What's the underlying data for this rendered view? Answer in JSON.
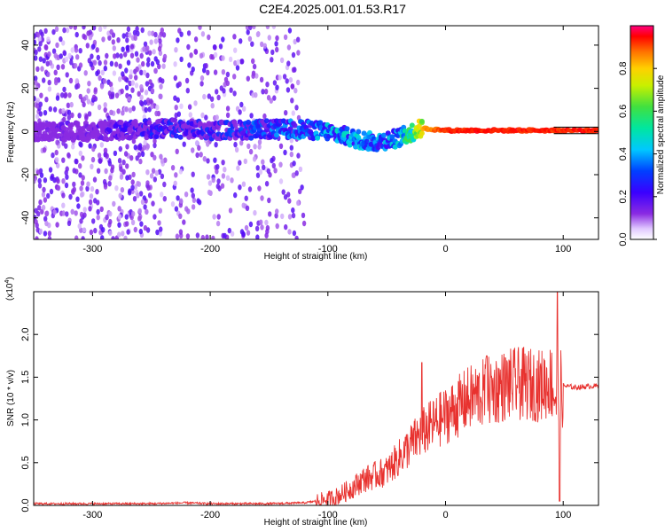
{
  "title": "C2E4.2025.001.01.53.R17",
  "colors": {
    "snr_line": "#e8322f",
    "point_primary": "#5a00e6",
    "point_faint": "#b8a0f0",
    "ridge_core": "#1adfb0",
    "frame": "#000000"
  },
  "chart_data": [
    {
      "type": "heatmap",
      "title": "C2E4.2025.001.01.53.R17",
      "xlabel": "Height of straight line (km)",
      "ylabel": "Frequency (Hz)",
      "xlim": [
        -350,
        130
      ],
      "ylim": [
        -50,
        49
      ],
      "x_ticks": [
        -300,
        -200,
        -100,
        0,
        100
      ],
      "y_ticks": [
        -40,
        -20,
        0,
        20,
        40
      ],
      "x_tick_labels": [
        "-300",
        "-200",
        "-100",
        "0",
        "100"
      ],
      "y_tick_labels": [
        "-40",
        "-20",
        "0",
        "20",
        "40"
      ],
      "grid": false,
      "colorbar": {
        "label": "Normalized spectral amplitude",
        "range": [
          0.0,
          1.0
        ],
        "ticks": [
          0.0,
          0.2,
          0.4,
          0.6,
          0.8
        ],
        "tick_labels": [
          "0.0",
          "0.2",
          "0.4",
          "0.6",
          "0.8"
        ],
        "colormap": "rainbow (white to purple to blue to cyan to green to yellow to red)"
      },
      "noise_region": {
        "x_range": [
          -350,
          -120
        ],
        "gap_x_range": [
          -238,
          -232
        ],
        "freq_range": [
          -50,
          49
        ],
        "amplitude": [
          0.05,
          0.2
        ]
      },
      "ridge": {
        "description": "signal band near 0 Hz; dense and noisy below about -30 km, narrow and stable above",
        "points": [
          {
            "x": -340,
            "f": 0.0,
            "amp": 0.15
          },
          {
            "x": -320,
            "f": 0.0,
            "amp": 0.2
          },
          {
            "x": -300,
            "f": 0.0,
            "amp": 0.18
          },
          {
            "x": -230,
            "f": 1.5,
            "amp": 0.35
          },
          {
            "x": -200,
            "f": 0.5,
            "amp": 0.3
          },
          {
            "x": -150,
            "f": 1.0,
            "amp": 0.4
          },
          {
            "x": -120,
            "f": 1.0,
            "amp": 0.45
          },
          {
            "x": -100,
            "f": 0.0,
            "amp": 0.5
          },
          {
            "x": -80,
            "f": -3.0,
            "amp": 0.5
          },
          {
            "x": -60,
            "f": -5.0,
            "amp": 0.45
          },
          {
            "x": -40,
            "f": -3.0,
            "amp": 0.5
          },
          {
            "x": -20,
            "f": 1.5,
            "amp": 0.85
          },
          {
            "x": 0,
            "f": 0.5,
            "amp": 0.95
          },
          {
            "x": 50,
            "f": 0.5,
            "amp": 0.97
          },
          {
            "x": 90,
            "f": 0.5,
            "amp": 0.95
          },
          {
            "x": 130,
            "f": 0.5,
            "amp": 0.97
          }
        ],
        "band_lines_hz": [
          2.0,
          -1.0
        ],
        "band_lines_x_start": 92
      }
    },
    {
      "type": "line",
      "title": "",
      "xlabel": "Height of straight line (km)",
      "ylabel": "SNR (10 * v/v)",
      "y_multiplier": "(x10^4)",
      "y_multiplier_base": "(x10",
      "y_multiplier_exp": "4",
      "y_multiplier_close": ")",
      "xlim": [
        -350,
        130
      ],
      "ylim": [
        0.0,
        2.5
      ],
      "x_ticks": [
        -300,
        -200,
        -100,
        0,
        100
      ],
      "y_ticks": [
        0.0,
        0.5,
        1.0,
        1.5,
        2.0
      ],
      "x_tick_labels": [
        "-300",
        "-200",
        "-100",
        "0",
        "100"
      ],
      "y_tick_labels": [
        "0.0",
        "0.5",
        "1.0",
        "1.5",
        "2.0"
      ],
      "grid": false,
      "series": [
        {
          "color": "#e8322f",
          "x": [
            -350,
            -300,
            -250,
            -220,
            -200,
            -150,
            -120,
            -100,
            -90,
            -80,
            -70,
            -60,
            -50,
            -40,
            -30,
            -20,
            -10,
            0,
            10,
            20,
            30,
            40,
            50,
            60,
            70,
            80,
            90,
            95,
            100,
            110,
            120,
            130
          ],
          "y": [
            0.02,
            0.02,
            0.02,
            0.03,
            0.02,
            0.02,
            0.03,
            0.07,
            0.12,
            0.2,
            0.3,
            0.35,
            0.4,
            0.55,
            0.7,
            0.85,
            0.95,
            1.05,
            1.15,
            1.25,
            1.3,
            1.35,
            1.4,
            1.42,
            1.42,
            1.4,
            1.45,
            1.2,
            1.4,
            1.38,
            1.39,
            1.4
          ],
          "spikes": [
            {
              "x": -20,
              "y": 1.67
            },
            {
              "x": 35,
              "y": 1.75
            },
            {
              "x": 95,
              "y": 2.5
            },
            {
              "x": 97,
              "y": 0.05
            }
          ]
        }
      ]
    }
  ]
}
